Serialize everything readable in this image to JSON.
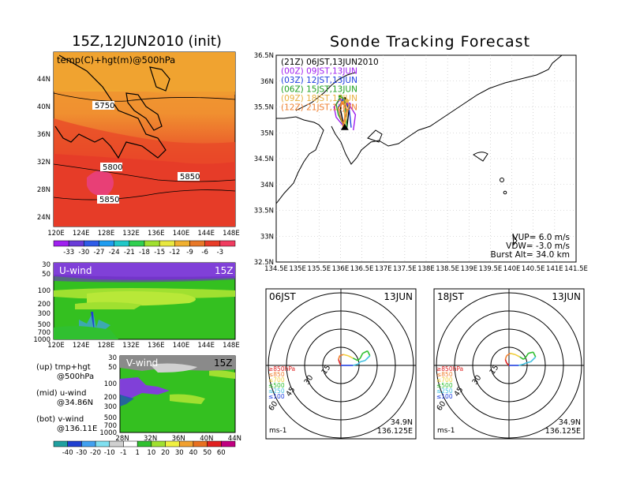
{
  "left_title": "15Z,12JUN2010 (init)",
  "right_title": "Sonde Tracking Forecast",
  "map": {
    "label": "temp(C)+hgt(m)@500hPa",
    "lon_ticks": [
      "120E",
      "124E",
      "128E",
      "132E",
      "136E",
      "140E",
      "144E",
      "148E"
    ],
    "lat_ticks": [
      "44N",
      "40N",
      "36N",
      "32N",
      "28N",
      "24N"
    ],
    "contours": [
      "5750",
      "5800",
      "5850",
      "5850"
    ]
  },
  "temp_colorbar": [
    "-33",
    "-30",
    "-27",
    "-24",
    "-21",
    "-18",
    "-15",
    "-12",
    "-9",
    "-6",
    "-3"
  ],
  "temp_colors": [
    "#a020f0",
    "#6a3cd8",
    "#2f5ce8",
    "#1e9cf0",
    "#20c8c8",
    "#30d050",
    "#a0e030",
    "#e8e840",
    "#f0b030",
    "#e87828",
    "#e83c28",
    "#f03c60"
  ],
  "uwind": {
    "label": "U-wind",
    "time": "15Z",
    "p_ticks": [
      "30",
      "50",
      "100",
      "200",
      "300",
      "500",
      "700",
      "1000"
    ],
    "lon_ticks": [
      "120E",
      "124E",
      "128E",
      "132E",
      "136E",
      "140E",
      "144E",
      "148E"
    ]
  },
  "vwind": {
    "label": "V-wind",
    "time": "15Z",
    "p_ticks": [
      "30",
      "50",
      "100",
      "200",
      "300",
      "500",
      "700",
      "1000"
    ],
    "lat_ticks": [
      "28N",
      "32N",
      "36N",
      "40N",
      "44N"
    ]
  },
  "notes": [
    "(up) tmp+hgt",
    "@500hPa",
    "(mid) u-wind",
    "@34.86N",
    "(bot) v-wind",
    "@136.11E"
  ],
  "wind_colorbar": [
    "-40",
    "-30",
    "-20",
    "-10",
    "-1",
    "1",
    "10",
    "20",
    "30",
    "40",
    "50",
    "60"
  ],
  "wind_colors": [
    "#20a0a0",
    "#2040d0",
    "#40a0f0",
    "#80e0f0",
    "#d0d0d0",
    "#ffffff",
    "#30c030",
    "#a0e030",
    "#f0f040",
    "#f0a030",
    "#e87020",
    "#e02020",
    "#c00080"
  ],
  "track": {
    "legend": [
      {
        "text": "(21Z)  06JST,13JUN2010",
        "color": "#000000"
      },
      {
        "text": "(00Z)  09JST,13JUN",
        "color": "#a020f0"
      },
      {
        "text": "(03Z)  12JST,13JUN",
        "color": "#2040e0"
      },
      {
        "text": "(06Z)  15JST,13JUN",
        "color": "#20a020"
      },
      {
        "text": "(09Z)  18JST,13JUN",
        "color": "#e8b040"
      },
      {
        "text": "(12Z)  21JST,13JUN",
        "color": "#f08030"
      }
    ],
    "lon_ticks": [
      "134.5E",
      "135E",
      "135.5E",
      "136E",
      "136.5E",
      "137E",
      "137.5E",
      "138E",
      "138.5E",
      "139E",
      "139.5E",
      "140E",
      "140.5E",
      "141E",
      "141.5E"
    ],
    "lat_ticks": [
      "36.5N",
      "36N",
      "35.5N",
      "35N",
      "34.5N",
      "34N",
      "33.5N",
      "33N",
      "32.5N"
    ],
    "info": [
      "VUP=  6.0  m/s",
      "VDW= -3.0  m/s",
      "Burst Alt= 34.0  km"
    ]
  },
  "chart_data": [
    {
      "type": "line",
      "title": "Sonde Tracking Forecast",
      "xlim": [
        134.5,
        141.5
      ],
      "ylim": [
        32.5,
        36.5
      ],
      "launch": [
        136.1,
        35.1
      ],
      "series": [
        {
          "name": "(21Z)  06JST,13JUN2010",
          "x": [
            136.1,
            136.05,
            136.0,
            136.02,
            136.1,
            136.2,
            136.15
          ],
          "y": [
            35.1,
            35.25,
            35.45,
            35.6,
            35.65,
            35.45,
            35.1
          ]
        },
        {
          "name": "(00Z)  09JST,13JUN",
          "x": [
            136.1,
            135.9,
            135.85,
            136.0,
            136.2,
            136.35,
            136.3
          ],
          "y": [
            35.1,
            35.3,
            35.5,
            35.65,
            35.55,
            35.35,
            35.05
          ]
        },
        {
          "name": "(03Z)  12JST,13JUN",
          "x": [
            136.1,
            136.0,
            135.95,
            136.05,
            136.2,
            136.25
          ],
          "y": [
            35.1,
            35.3,
            35.5,
            35.62,
            35.5,
            35.1
          ]
        },
        {
          "name": "(06Z)  15JST,13JUN",
          "x": [
            136.1,
            135.95,
            135.9,
            136.0,
            136.1,
            136.15
          ],
          "y": [
            35.1,
            35.35,
            35.55,
            35.7,
            35.65,
            35.1
          ]
        },
        {
          "name": "(09Z)  18JST,13JUN",
          "x": [
            136.1,
            136.1,
            136.08,
            136.15,
            136.2,
            136.1
          ],
          "y": [
            35.1,
            35.3,
            35.5,
            35.62,
            35.55,
            35.15
          ]
        },
        {
          "name": "(12Z)  21JST,13JUN",
          "x": [
            136.1,
            136.0,
            135.95,
            136.05,
            136.15,
            136.05
          ],
          "y": [
            35.1,
            35.3,
            35.48,
            35.58,
            35.45,
            35.12
          ]
        }
      ]
    },
    {
      "type": "line",
      "title": "06JST 13JUN",
      "annotations": [
        "15",
        "30",
        "45",
        "60",
        "34.9N",
        "136.125E",
        "ms-1"
      ],
      "legend": [
        {
          "text": "≥850hPa",
          "color": "#e02020"
        },
        {
          "text": "≤850",
          "color": "#f08030"
        },
        {
          "text": "≤700",
          "color": "#f0d040"
        },
        {
          "text": "≤500",
          "color": "#30c030"
        },
        {
          "text": "≤250",
          "color": "#40c0e0"
        },
        {
          "text": "≤100",
          "color": "#2040e0"
        }
      ],
      "hodograph_u": [
        0,
        -1,
        -2,
        -1,
        2,
        6,
        10,
        14,
        16,
        18,
        22,
        24,
        20,
        16,
        14,
        10,
        4,
        0
      ],
      "hodograph_v": [
        0,
        2,
        5,
        8,
        9,
        8,
        6,
        4,
        6,
        10,
        12,
        8,
        4,
        3,
        1,
        0,
        0,
        0
      ]
    },
    {
      "type": "line",
      "title": "18JST 13JUN",
      "annotations": [
        "15",
        "30",
        "45",
        "60",
        "34.9N",
        "136.125E",
        "ms-1"
      ],
      "legend": [
        {
          "text": "≥850hPa",
          "color": "#e02020"
        },
        {
          "text": "≤850",
          "color": "#f08030"
        },
        {
          "text": "≤700",
          "color": "#f0d040"
        },
        {
          "text": "≤500",
          "color": "#30c030"
        },
        {
          "text": "≤250",
          "color": "#40c0e0"
        },
        {
          "text": "≤100",
          "color": "#2040e0"
        }
      ],
      "hodograph_u": [
        0,
        -2,
        -3,
        -2,
        1,
        5,
        9,
        12,
        14,
        16,
        20,
        22,
        18,
        14,
        12,
        8,
        3,
        0
      ],
      "hodograph_v": [
        0,
        2,
        5,
        8,
        10,
        9,
        7,
        5,
        7,
        10,
        11,
        7,
        3,
        2,
        1,
        0,
        0,
        0
      ]
    }
  ]
}
